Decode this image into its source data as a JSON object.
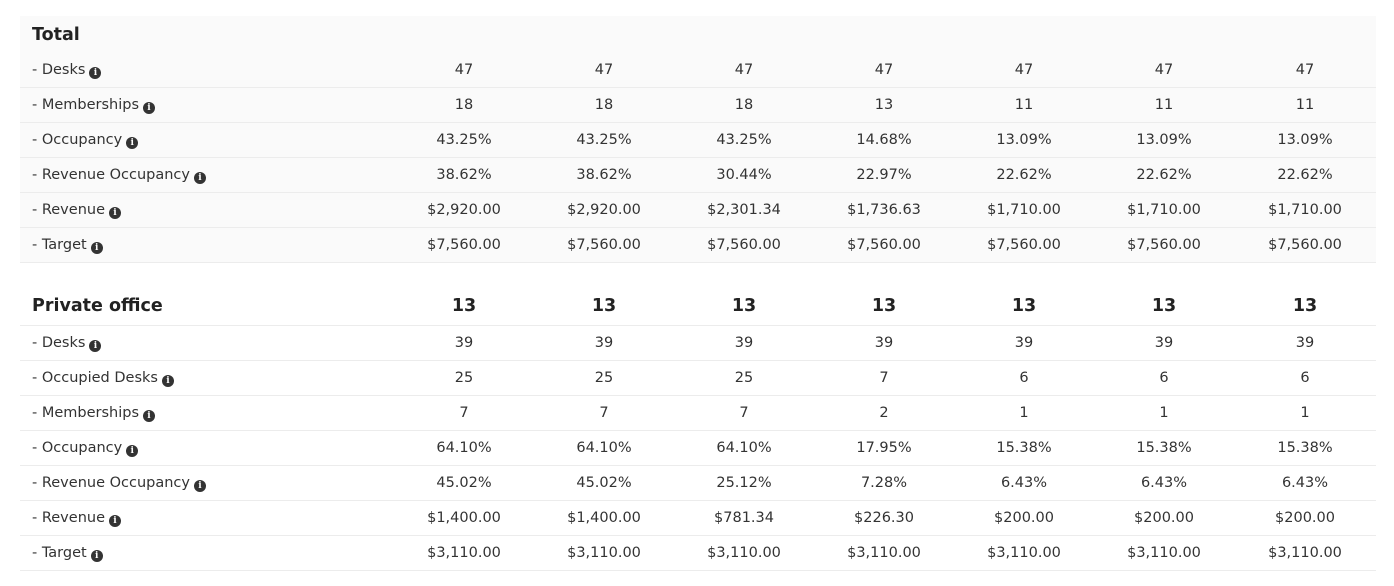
{
  "info_glyph": "i",
  "total": {
    "title": "Total",
    "rows": [
      {
        "label": "- Desks",
        "values": [
          "47",
          "47",
          "47",
          "47",
          "47",
          "47",
          "47"
        ]
      },
      {
        "label": "- Memberships",
        "values": [
          "18",
          "18",
          "18",
          "13",
          "11",
          "11",
          "11"
        ]
      },
      {
        "label": "- Occupancy",
        "values": [
          "43.25%",
          "43.25%",
          "43.25%",
          "14.68%",
          "13.09%",
          "13.09%",
          "13.09%"
        ]
      },
      {
        "label": "- Revenue Occupancy",
        "values": [
          "38.62%",
          "38.62%",
          "30.44%",
          "22.97%",
          "22.62%",
          "22.62%",
          "22.62%"
        ]
      },
      {
        "label": "- Revenue",
        "values": [
          "$2,920.00",
          "$2,920.00",
          "$2,301.34",
          "$1,736.63",
          "$1,710.00",
          "$1,710.00",
          "$1,710.00"
        ]
      },
      {
        "label": "- Target",
        "values": [
          "$7,560.00",
          "$7,560.00",
          "$7,560.00",
          "$7,560.00",
          "$7,560.00",
          "$7,560.00",
          "$7,560.00"
        ]
      }
    ]
  },
  "private_office": {
    "title": "Private office",
    "header_values": [
      "13",
      "13",
      "13",
      "13",
      "13",
      "13",
      "13"
    ],
    "rows": [
      {
        "label": "- Desks",
        "values": [
          "39",
          "39",
          "39",
          "39",
          "39",
          "39",
          "39"
        ]
      },
      {
        "label": "- Occupied Desks",
        "values": [
          "25",
          "25",
          "25",
          "7",
          "6",
          "6",
          "6"
        ]
      },
      {
        "label": "- Memberships",
        "values": [
          "7",
          "7",
          "7",
          "2",
          "1",
          "1",
          "1"
        ]
      },
      {
        "label": "- Occupancy",
        "values": [
          "64.10%",
          "64.10%",
          "64.10%",
          "17.95%",
          "15.38%",
          "15.38%",
          "15.38%"
        ]
      },
      {
        "label": "- Revenue Occupancy",
        "values": [
          "45.02%",
          "45.02%",
          "25.12%",
          "7.28%",
          "6.43%",
          "6.43%",
          "6.43%"
        ]
      },
      {
        "label": "- Revenue",
        "values": [
          "$1,400.00",
          "$1,400.00",
          "$781.34",
          "$226.30",
          "$200.00",
          "$200.00",
          "$200.00"
        ]
      },
      {
        "label": "- Target",
        "values": [
          "$3,110.00",
          "$3,110.00",
          "$3,110.00",
          "$3,110.00",
          "$3,110.00",
          "$3,110.00",
          "$3,110.00"
        ]
      }
    ]
  }
}
